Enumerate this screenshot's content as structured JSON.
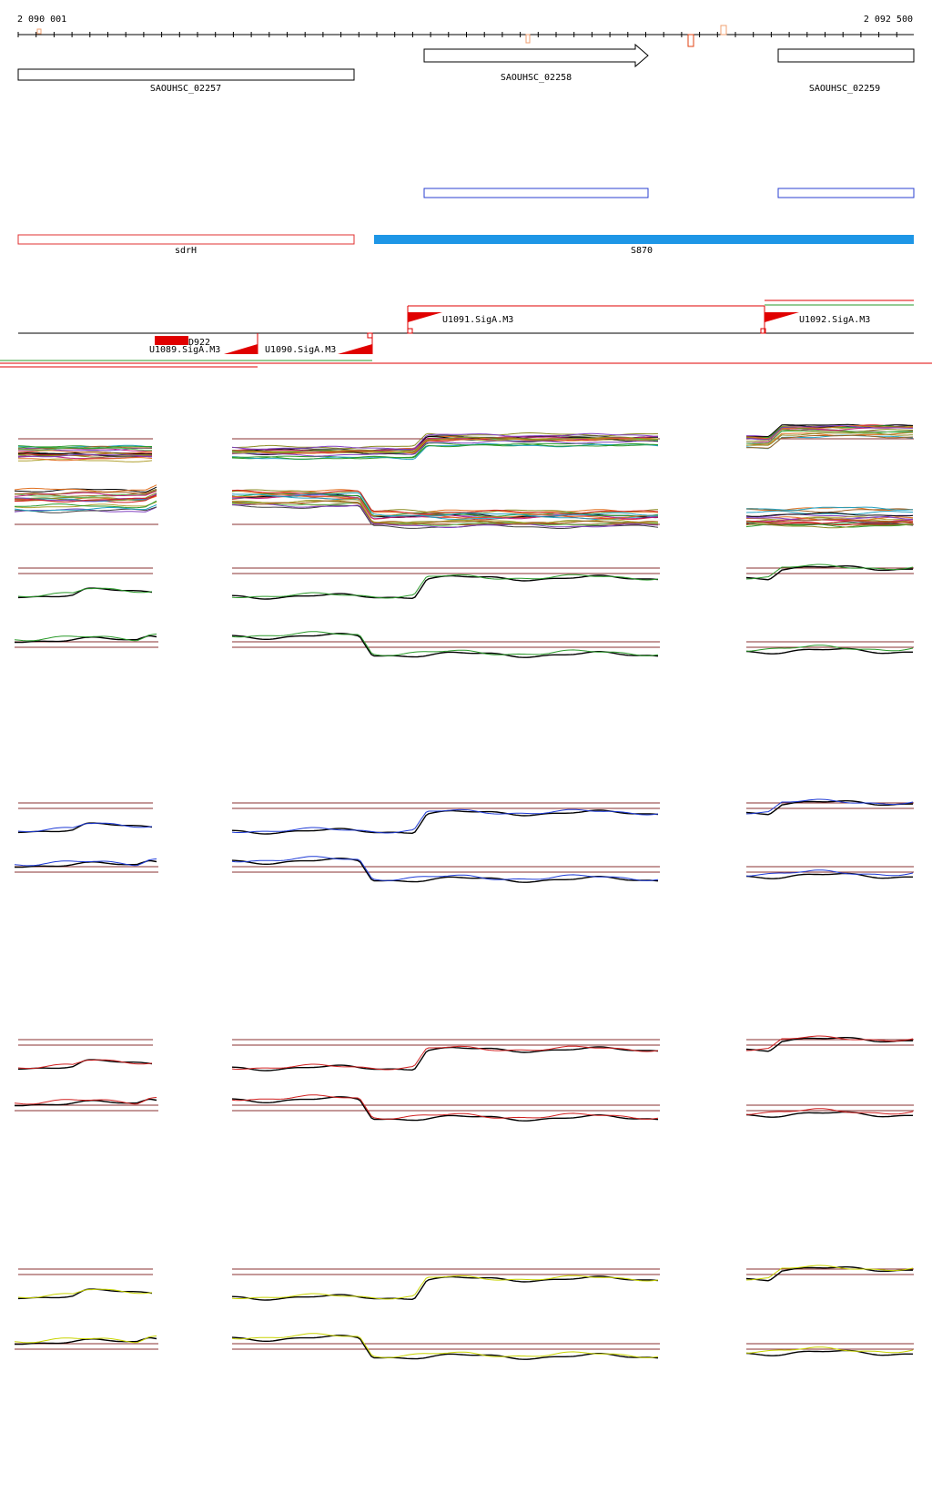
{
  "ruler": {
    "start_label": "2 090 001",
    "end_label": "2 092 500",
    "start_bp": 2090001,
    "end_bp": 2092500
  },
  "genes": [
    {
      "label": "SAOUHSC_02257",
      "start_bp": 2090001,
      "end_bp": 2090950,
      "strand": "none"
    },
    {
      "label": "SAOUHSC_02258",
      "start_bp": 2091140,
      "end_bp": 2091775,
      "strand": "+"
    },
    {
      "label": "SAOUHSC_02259",
      "start_bp": 2092140,
      "end_bp": 2092500,
      "strand": "none"
    }
  ],
  "annotations": [
    {
      "label": "sdrH",
      "start_bp": 2090001,
      "end_bp": 2090950,
      "style": "outline",
      "color": "#e03030"
    },
    {
      "label": "S870",
      "start_bp": 2091005,
      "end_bp": 2092500,
      "style": "filled",
      "color": "#1e96e6"
    }
  ],
  "promoters": [
    {
      "label": "U1091.SigA.M3",
      "strand": "+"
    },
    {
      "label": "U1092.SigA.M3",
      "strand": "+"
    },
    {
      "label": "D922",
      "strand": "-"
    },
    {
      "label": "U1089.SigA.M3",
      "strand": "-"
    },
    {
      "label": "U1090.SigA.M3",
      "strand": "-"
    }
  ],
  "colors": {
    "gene_outline": "#000000",
    "transcript_outline": "#2a3fd0",
    "promoter": "#e00000",
    "track_green": "#2a9a2a",
    "track_blue": "#1f3bd6",
    "track_red": "#d02020",
    "track_yellow": "#c8d400",
    "baseline": "#8a3030"
  }
}
